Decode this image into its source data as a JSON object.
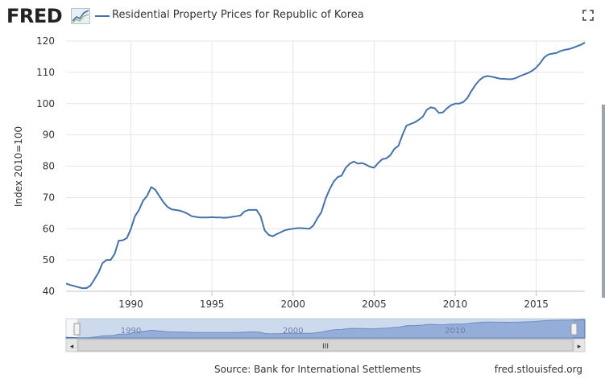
{
  "header": {
    "logo_text": "FRED",
    "title": "Residential Property Prices for Republic of Korea",
    "fullscreen_icon": "fullscreen-icon",
    "logo_icon": "fred-graph-icon"
  },
  "footer": {
    "source": "Source: Bank for International Settlements",
    "site": "fred.stlouisfed.org"
  },
  "colors": {
    "series": "#4572a7",
    "navigator_fill": "#8fa9d6",
    "navigator_mask": "#9eb3dd"
  },
  "navigator": {
    "tick_labels": [
      "1990",
      "2000",
      "2010"
    ],
    "grip_label": "III",
    "left_arrow": "◂",
    "right_arrow": "▸"
  },
  "chart_data": {
    "type": "line",
    "title": "Residential Property Prices for Republic of Korea",
    "ylabel": "Index 2010=100",
    "xlabel": "",
    "xlim": [
      1986.0,
      2018.0
    ],
    "ylim": [
      40,
      120
    ],
    "yticks": [
      40,
      50,
      60,
      70,
      80,
      90,
      100,
      110,
      120
    ],
    "xticks": [
      1990,
      1995,
      2000,
      2005,
      2010,
      2015
    ],
    "grid": true,
    "legend": "top-left",
    "series": [
      {
        "name": "Residential Property Prices for Republic of Korea",
        "x": [
          1986.0,
          1986.25,
          1986.5,
          1986.75,
          1987.0,
          1987.25,
          1987.5,
          1987.75,
          1988.0,
          1988.25,
          1988.5,
          1988.75,
          1989.0,
          1989.25,
          1989.5,
          1989.75,
          1990.0,
          1990.25,
          1990.5,
          1990.75,
          1991.0,
          1991.25,
          1991.5,
          1991.75,
          1992.0,
          1992.25,
          1992.5,
          1992.75,
          1993.0,
          1993.25,
          1993.5,
          1993.75,
          1994.0,
          1994.25,
          1994.5,
          1994.75,
          1995.0,
          1995.25,
          1995.5,
          1995.75,
          1996.0,
          1996.25,
          1996.5,
          1996.75,
          1997.0,
          1997.25,
          1997.5,
          1997.75,
          1998.0,
          1998.25,
          1998.5,
          1998.75,
          1999.0,
          1999.25,
          1999.5,
          1999.75,
          2000.0,
          2000.25,
          2000.5,
          2000.75,
          2001.0,
          2001.25,
          2001.5,
          2001.75,
          2002.0,
          2002.25,
          2002.5,
          2002.75,
          2003.0,
          2003.25,
          2003.5,
          2003.75,
          2004.0,
          2004.25,
          2004.5,
          2004.75,
          2005.0,
          2005.25,
          2005.5,
          2005.75,
          2006.0,
          2006.25,
          2006.5,
          2006.75,
          2007.0,
          2007.25,
          2007.5,
          2007.75,
          2008.0,
          2008.25,
          2008.5,
          2008.75,
          2009.0,
          2009.25,
          2009.5,
          2009.75,
          2010.0,
          2010.25,
          2010.5,
          2010.75,
          2011.0,
          2011.25,
          2011.5,
          2011.75,
          2012.0,
          2012.25,
          2012.5,
          2012.75,
          2013.0,
          2013.25,
          2013.5,
          2013.75,
          2014.0,
          2014.25,
          2014.5,
          2014.75,
          2015.0,
          2015.25,
          2015.5,
          2015.75,
          2016.0,
          2016.25,
          2016.5,
          2016.75,
          2017.0,
          2017.25,
          2017.5,
          2017.75,
          2018.0
        ],
        "y": [
          42.5,
          42.0,
          41.7,
          41.3,
          41.0,
          41.0,
          41.8,
          43.8,
          46.0,
          49.0,
          50.0,
          50.0,
          52.0,
          56.2,
          56.3,
          57.0,
          60.0,
          64.0,
          66.0,
          69.0,
          70.5,
          73.3,
          72.5,
          70.5,
          68.5,
          67.0,
          66.2,
          66.0,
          65.8,
          65.4,
          64.8,
          64.0,
          63.8,
          63.6,
          63.6,
          63.6,
          63.7,
          63.6,
          63.6,
          63.5,
          63.6,
          63.8,
          64.0,
          64.2,
          65.5,
          66.0,
          66.0,
          66.0,
          64.0,
          59.5,
          58.0,
          57.6,
          58.3,
          58.9,
          59.5,
          59.8,
          60.0,
          60.2,
          60.2,
          60.1,
          60.0,
          61.0,
          63.3,
          65.3,
          69.5,
          72.5,
          75.0,
          76.5,
          77.0,
          79.5,
          80.8,
          81.5,
          80.8,
          81.0,
          80.5,
          79.8,
          79.5,
          81.0,
          82.2,
          82.5,
          83.5,
          85.5,
          86.5,
          90.0,
          93.0,
          93.5,
          94.0,
          94.8,
          95.8,
          98.0,
          98.8,
          98.5,
          97.0,
          97.2,
          98.5,
          99.5,
          100.0,
          100.0,
          100.5,
          101.8,
          104.0,
          106.0,
          107.5,
          108.5,
          108.8,
          108.6,
          108.3,
          108.0,
          107.9,
          107.8,
          107.8,
          108.2,
          108.8,
          109.3,
          109.8,
          110.5,
          111.5,
          113.0,
          114.8,
          115.7,
          116.0,
          116.2,
          116.8,
          117.2,
          117.4,
          117.8,
          118.3,
          118.8,
          119.5
        ]
      }
    ]
  }
}
